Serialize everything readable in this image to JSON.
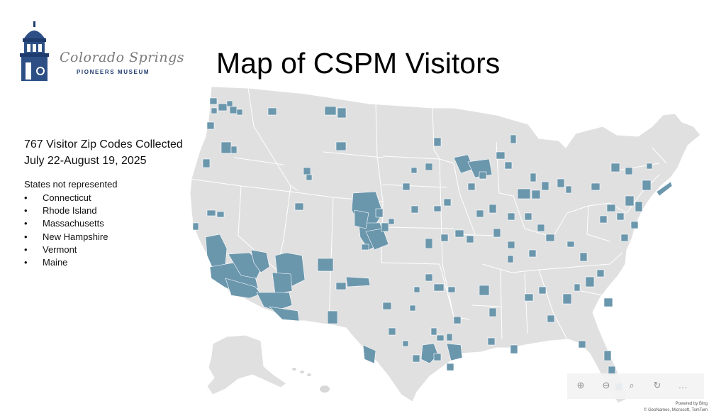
{
  "logo": {
    "script_text": "Colorado Springs",
    "sub_text": "PIONEERS MUSEUM"
  },
  "title": "Map of CSPM Visitors",
  "summary": {
    "line1": "767 Visitor Zip Codes Collected",
    "line2": "July 22-August 19, 2025"
  },
  "states_not_represented": {
    "header": "States not represented",
    "items": [
      "Connecticut",
      "Rhode Island",
      "Massachusetts",
      "New Hampshire",
      "Vermont",
      "Maine"
    ]
  },
  "map": {
    "land_color": "#e0e0e0",
    "border_color": "#ffffff",
    "highlight_color": "#6b97ad",
    "water_color": "#ffffff"
  },
  "map_controls": [
    "zoom-in-icon",
    "zoom-out-icon",
    "search-icon",
    "reset-rotation-icon",
    "more-icon"
  ],
  "attribution": {
    "powered": "Powered by Bing",
    "credits": "© GeoNames, Microsoft, TomTom"
  }
}
